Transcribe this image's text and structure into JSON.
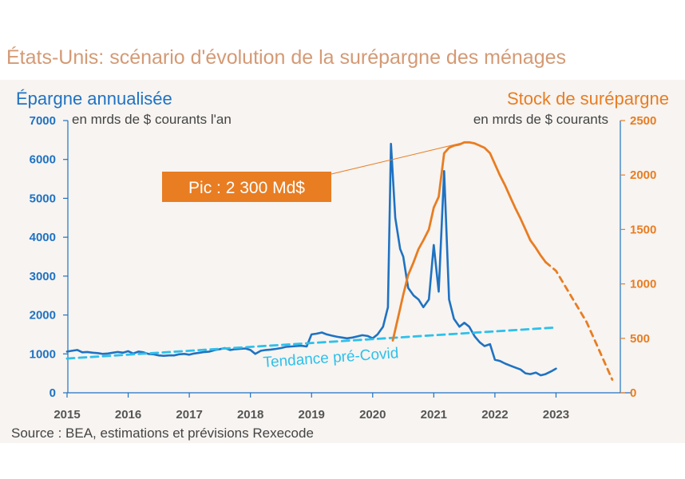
{
  "page": {
    "title": "États-Unis: scénario d'évolution de la surépargne des ménages",
    "source": "Source : BEA, estimations et prévisions Rexecode"
  },
  "colors": {
    "blue": "#1f72c2",
    "orange": "#e87d22",
    "cyan": "#2fc0ea",
    "title": "#d49a75",
    "panel": "#f7f4f1",
    "callout_text": "#ffffff"
  },
  "chart_data": {
    "type": "line",
    "grid": false,
    "left_axis": {
      "title": "Épargne annualisée",
      "unit": "en mrds de $ courants l'an",
      "ylim": [
        0,
        7000
      ],
      "ticks": [
        "0",
        "1000",
        "2000",
        "3000",
        "4000",
        "5000",
        "6000",
        "7000"
      ],
      "tick_values": [
        0,
        1000,
        2000,
        3000,
        4000,
        5000,
        6000,
        7000
      ]
    },
    "right_axis": {
      "title": "Stock de surépargne",
      "unit": "en mrds de $ courants",
      "ylim": [
        0,
        2500
      ],
      "ticks": [
        "0",
        "500",
        "1000",
        "1500",
        "2000",
        "2500"
      ],
      "tick_values": [
        0,
        500,
        1000,
        1500,
        2000,
        2500
      ]
    },
    "x_axis": {
      "xlim": [
        2015,
        2024
      ],
      "ticks": [
        "2015",
        "2016",
        "2017",
        "2018",
        "2019",
        "2020",
        "2021",
        "2022",
        "2023"
      ],
      "tick_values": [
        2015,
        2016,
        2017,
        2018,
        2019,
        2020,
        2021,
        2022,
        2023
      ]
    },
    "series": [
      {
        "key": "savings",
        "axis": "left",
        "style": "solid",
        "color": "#1f72c2",
        "points": [
          [
            2015.0,
            1060
          ],
          [
            2015.08,
            1080
          ],
          [
            2015.17,
            1100
          ],
          [
            2015.25,
            1040
          ],
          [
            2015.33,
            1050
          ],
          [
            2015.42,
            1030
          ],
          [
            2015.5,
            1020
          ],
          [
            2015.58,
            1000
          ],
          [
            2015.67,
            1010
          ],
          [
            2015.75,
            1030
          ],
          [
            2015.83,
            1050
          ],
          [
            2015.92,
            1030
          ],
          [
            2016.0,
            1070
          ],
          [
            2016.08,
            1010
          ],
          [
            2016.17,
            1060
          ],
          [
            2016.25,
            1040
          ],
          [
            2016.33,
            1000
          ],
          [
            2016.42,
            990
          ],
          [
            2016.5,
            960
          ],
          [
            2016.58,
            950
          ],
          [
            2016.67,
            960
          ],
          [
            2016.75,
            960
          ],
          [
            2016.83,
            990
          ],
          [
            2016.92,
            1000
          ],
          [
            2017.0,
            980
          ],
          [
            2017.08,
            1010
          ],
          [
            2017.17,
            1030
          ],
          [
            2017.25,
            1050
          ],
          [
            2017.33,
            1060
          ],
          [
            2017.42,
            1100
          ],
          [
            2017.5,
            1120
          ],
          [
            2017.58,
            1150
          ],
          [
            2017.67,
            1100
          ],
          [
            2017.75,
            1120
          ],
          [
            2017.83,
            1130
          ],
          [
            2017.92,
            1140
          ],
          [
            2018.0,
            1100
          ],
          [
            2018.08,
            1000
          ],
          [
            2018.17,
            1080
          ],
          [
            2018.25,
            1100
          ],
          [
            2018.33,
            1110
          ],
          [
            2018.42,
            1130
          ],
          [
            2018.5,
            1150
          ],
          [
            2018.58,
            1180
          ],
          [
            2018.67,
            1190
          ],
          [
            2018.75,
            1200
          ],
          [
            2018.83,
            1210
          ],
          [
            2018.92,
            1190
          ],
          [
            2019.0,
            1500
          ],
          [
            2019.08,
            1520
          ],
          [
            2019.17,
            1550
          ],
          [
            2019.25,
            1500
          ],
          [
            2019.33,
            1470
          ],
          [
            2019.42,
            1440
          ],
          [
            2019.5,
            1420
          ],
          [
            2019.58,
            1400
          ],
          [
            2019.67,
            1420
          ],
          [
            2019.75,
            1450
          ],
          [
            2019.83,
            1480
          ],
          [
            2019.92,
            1460
          ],
          [
            2020.0,
            1400
          ],
          [
            2020.08,
            1500
          ],
          [
            2020.17,
            1700
          ],
          [
            2020.25,
            2200
          ],
          [
            2020.3,
            6400
          ],
          [
            2020.37,
            4500
          ],
          [
            2020.45,
            3700
          ],
          [
            2020.5,
            3500
          ],
          [
            2020.58,
            2700
          ],
          [
            2020.67,
            2500
          ],
          [
            2020.75,
            2400
          ],
          [
            2020.83,
            2200
          ],
          [
            2020.92,
            2400
          ],
          [
            2021.0,
            3800
          ],
          [
            2021.08,
            2600
          ],
          [
            2021.17,
            5700
          ],
          [
            2021.25,
            2400
          ],
          [
            2021.33,
            1900
          ],
          [
            2021.42,
            1700
          ],
          [
            2021.5,
            1800
          ],
          [
            2021.58,
            1700
          ],
          [
            2021.67,
            1450
          ],
          [
            2021.75,
            1300
          ],
          [
            2021.83,
            1200
          ],
          [
            2021.92,
            1250
          ],
          [
            2022.0,
            850
          ],
          [
            2022.08,
            820
          ],
          [
            2022.17,
            750
          ],
          [
            2022.25,
            700
          ],
          [
            2022.33,
            650
          ],
          [
            2022.42,
            600
          ],
          [
            2022.5,
            500
          ],
          [
            2022.58,
            480
          ],
          [
            2022.67,
            520
          ],
          [
            2022.75,
            450
          ],
          [
            2022.83,
            480
          ],
          [
            2022.92,
            550
          ],
          [
            2023.0,
            620
          ]
        ]
      },
      {
        "key": "pre_covid_trend",
        "name": "Tendance pré-Covid",
        "axis": "left",
        "style": "dashed",
        "color": "#2fc0ea",
        "points": [
          [
            2015.0,
            880
          ],
          [
            2023.0,
            1680
          ]
        ]
      },
      {
        "key": "excess_stock",
        "axis": "right",
        "style": "solid",
        "color": "#e87d22",
        "points": [
          [
            2020.33,
            480
          ],
          [
            2020.42,
            700
          ],
          [
            2020.5,
            900
          ],
          [
            2020.58,
            1080
          ],
          [
            2020.67,
            1200
          ],
          [
            2020.75,
            1320
          ],
          [
            2020.83,
            1400
          ],
          [
            2020.92,
            1500
          ],
          [
            2021.0,
            1700
          ],
          [
            2021.08,
            1800
          ],
          [
            2021.17,
            2200
          ],
          [
            2021.25,
            2250
          ],
          [
            2021.33,
            2270
          ],
          [
            2021.42,
            2280
          ],
          [
            2021.5,
            2300
          ],
          [
            2021.58,
            2300
          ],
          [
            2021.67,
            2290
          ],
          [
            2021.75,
            2270
          ],
          [
            2021.83,
            2250
          ],
          [
            2021.92,
            2200
          ],
          [
            2022.0,
            2100
          ],
          [
            2022.08,
            2000
          ],
          [
            2022.17,
            1900
          ],
          [
            2022.25,
            1800
          ],
          [
            2022.33,
            1700
          ],
          [
            2022.42,
            1600
          ],
          [
            2022.5,
            1500
          ],
          [
            2022.58,
            1400
          ],
          [
            2022.67,
            1330
          ],
          [
            2022.75,
            1260
          ],
          [
            2022.83,
            1200
          ]
        ]
      },
      {
        "key": "excess_stock_forecast",
        "axis": "right",
        "style": "dashed",
        "color": "#e87d22",
        "points": [
          [
            2022.83,
            1200
          ],
          [
            2023.0,
            1120
          ],
          [
            2023.5,
            650
          ],
          [
            2023.92,
            120
          ]
        ]
      }
    ],
    "annotations": [
      {
        "text": "Pic : 2 300 Md$",
        "target": [
          2021.5,
          2300
        ],
        "axis": "right"
      }
    ]
  }
}
